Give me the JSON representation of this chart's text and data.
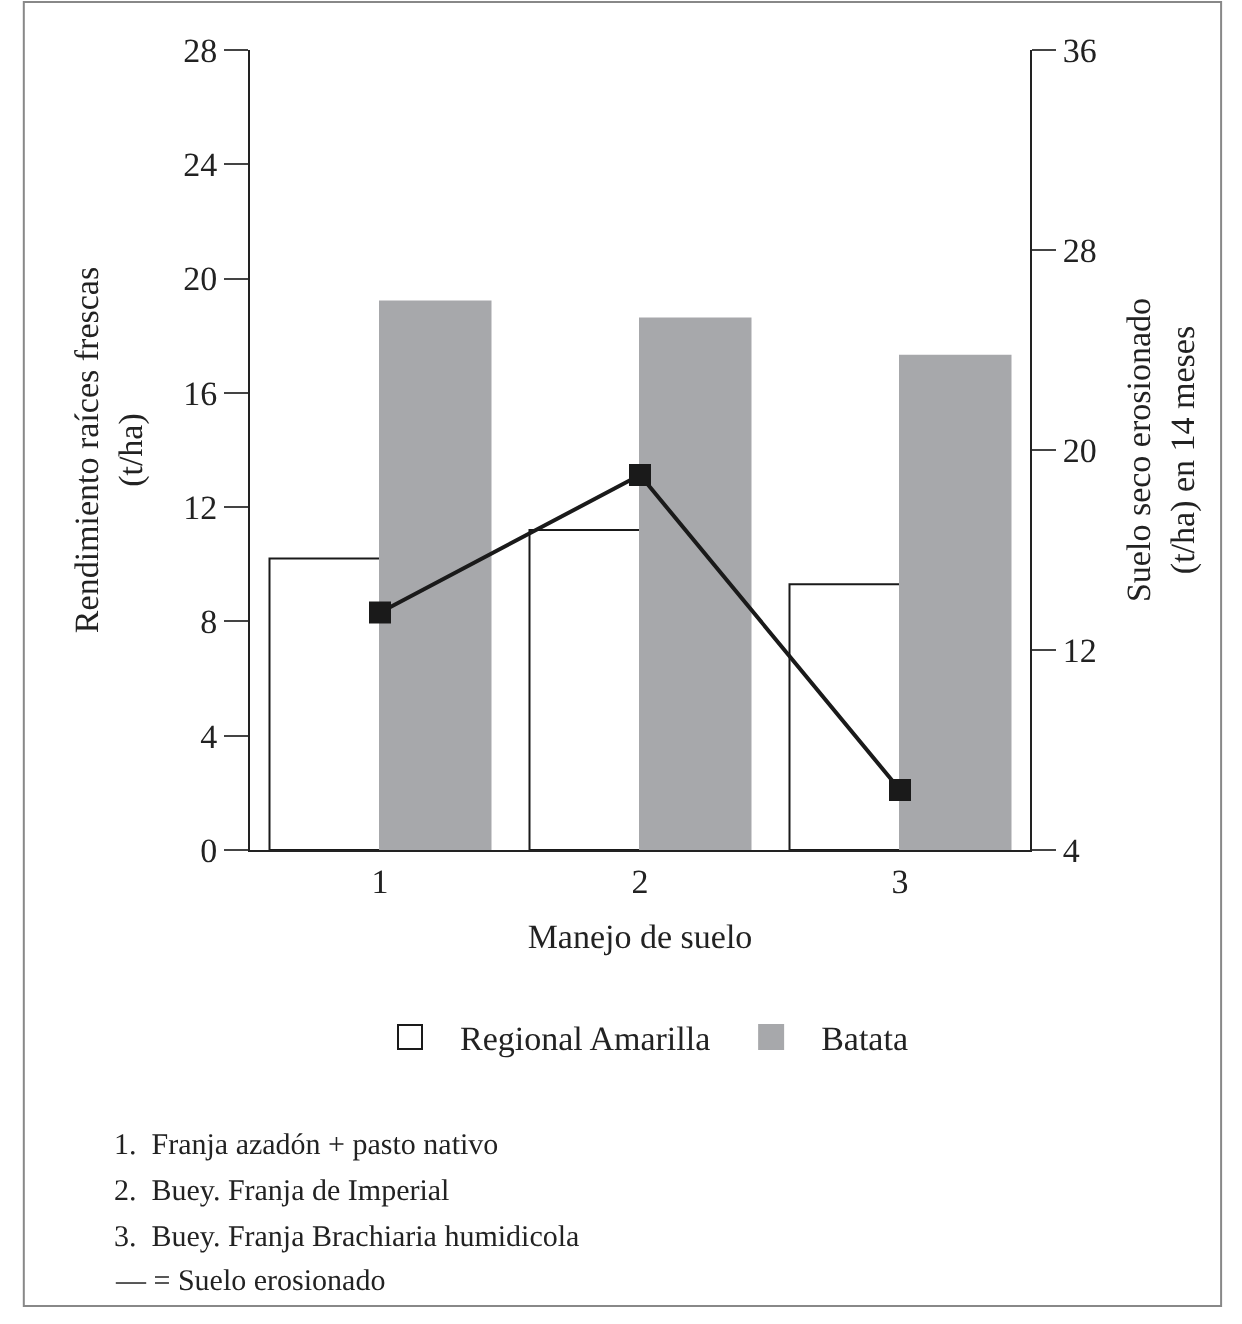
{
  "chart_data": {
    "type": "bar",
    "xlabel": "Manejo de suelo",
    "ylabel": "Rendimiento raíces frescas\n(t/ha)",
    "y2label": "Suelo seco erosionado\n(t/ha) en 14 meses",
    "categories": [
      "1",
      "2",
      "3"
    ],
    "series": [
      {
        "name": "Regional Amarilla",
        "color": "#ffffff",
        "values": [
          10.2,
          11.2,
          9.3
        ]
      },
      {
        "name": "Batata",
        "color": "#a7a8ab",
        "values": [
          19.2,
          18.6,
          17.3
        ]
      },
      {
        "type": "line",
        "axis": "y2",
        "color": "#1a1a1a",
        "marker": "square",
        "line_style": "solid",
        "values": [
          13.5,
          19.0,
          6.4
        ]
      }
    ],
    "ylim": [
      0,
      28
    ],
    "yticks": [
      0,
      4,
      8,
      12,
      16,
      20,
      24,
      28
    ],
    "y2lim": [
      4,
      36
    ],
    "y2ticks": [
      4,
      12,
      20,
      28,
      36
    ],
    "legend": "bottom",
    "annotations": [
      "1.  Franja azadón + pasto nativo",
      "2.  Buey. Franja de Imperial",
      "3.  Buey. Franja Brachiaria humidicola",
      "— = Suelo erosionado"
    ]
  }
}
